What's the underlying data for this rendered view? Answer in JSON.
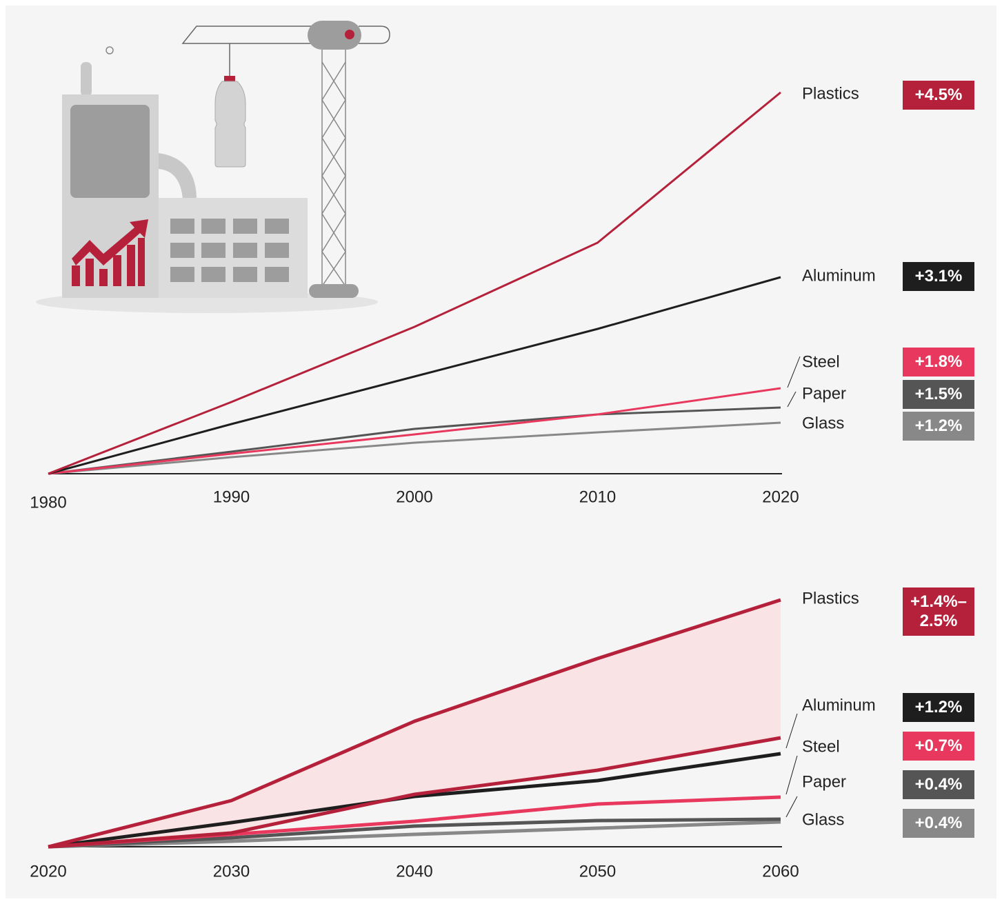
{
  "chart_data": [
    {
      "type": "line",
      "x": [
        1980,
        1990,
        2000,
        2010,
        2020
      ],
      "xlim": [
        1980,
        2020
      ],
      "ylim": [
        0,
        600
      ],
      "series": [
        {
          "name": "Plastics",
          "label": "+4.5%",
          "color": "#b5213a",
          "values": [
            0,
            104,
            213,
            335,
            553
          ]
        },
        {
          "name": "Aluminum",
          "label": "+3.1%",
          "color": "#1e1e1e",
          "values": [
            0,
            72,
            141,
            210,
            285
          ]
        },
        {
          "name": "Steel",
          "label": "+1.8%",
          "color": "#e8385e",
          "values": [
            0,
            29,
            57,
            86,
            124
          ]
        },
        {
          "name": "Paper",
          "label": "+1.5%",
          "color": "#555555",
          "values": [
            0,
            32,
            65,
            86,
            96
          ]
        },
        {
          "name": "Glass",
          "label": "+1.2%",
          "color": "#888888",
          "values": [
            0,
            24,
            45,
            60,
            74
          ]
        }
      ]
    },
    {
      "type": "line",
      "x": [
        2020,
        2030,
        2040,
        2050,
        2060
      ],
      "xlim": [
        2020,
        2060
      ],
      "ylim": [
        0,
        400
      ],
      "series": [
        {
          "name": "Plastics",
          "label": "+1.4%–2.5%",
          "color": "#b5213a",
          "band_color": "#f9e3e4",
          "values": [
            0,
            67,
            182,
            273,
            358
          ],
          "low": [
            0,
            20,
            76,
            111,
            158
          ]
        },
        {
          "name": "Aluminum",
          "label": "+1.2%",
          "color": "#1e1e1e",
          "values": [
            0,
            35,
            73,
            96,
            135
          ]
        },
        {
          "name": "Steel",
          "label": "+0.7%",
          "color": "#e8385e",
          "values": [
            0,
            18,
            37,
            62,
            72
          ]
        },
        {
          "name": "Paper",
          "label": "+0.4%",
          "color": "#555555",
          "values": [
            0,
            13,
            30,
            38,
            40
          ]
        },
        {
          "name": "Glass",
          "label": "+0.4%",
          "color": "#888888",
          "values": [
            0,
            8,
            18,
            27,
            36
          ]
        }
      ]
    }
  ]
}
